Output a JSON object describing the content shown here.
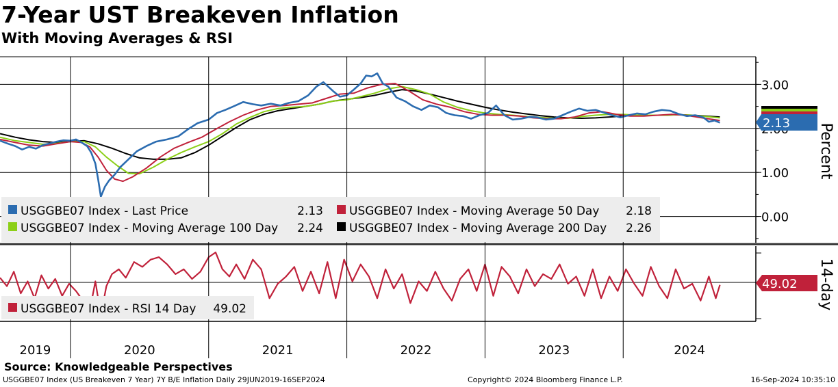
{
  "header": {
    "title": "7-Year UST Breakeven Inflation",
    "subtitle": "With Moving Averages & RSI"
  },
  "footer": {
    "source": "Source: Knowledgeable Perspectives",
    "description": "USGGBE07 Index (US Breakeven 7 Year) 7Y B/E Inflation  Daily 29JUN2019-16SEP2024",
    "copyright": "Copyright© 2024 Bloomberg Finance L.P.",
    "timestamp": "16-Sep-2024 10:35:10"
  },
  "colors": {
    "last_price": "#2b6cb0",
    "ma50": "#c0213a",
    "ma100": "#8ccf17",
    "ma200": "#000000",
    "rsi": "#c0213a",
    "legend_bg": "#ededed"
  },
  "chart_data": [
    {
      "type": "line",
      "panel": "price",
      "ylabel": "Percent",
      "ylim": [
        -0.55,
        3.55
      ],
      "yticks": [
        "3.00",
        "2.00",
        "1.00",
        "0.00"
      ],
      "yticks_values": [
        3.0,
        2.0,
        1.0,
        0.0
      ],
      "x_years": [
        "2019",
        "2020",
        "2021",
        "2022",
        "2023",
        "2024"
      ],
      "x_year_starts": [
        2020.0,
        2021.0,
        2022.0,
        2023.0,
        2024.0
      ],
      "xlim": [
        2019.49,
        2024.96
      ],
      "legend": [
        {
          "label": "USGGBE07 Index - Last Price",
          "value": "2.13"
        },
        {
          "label": "USGGBE07 Index - Moving Average 50 Day",
          "value": "2.18"
        },
        {
          "label": "USGGBE07 Index - Moving Average 100 Day",
          "value": "2.24"
        },
        {
          "label": "USGGBE07 Index - Moving Average 200 Day",
          "value": "2.26"
        }
      ],
      "last_value_tag": "2.13",
      "series": [
        {
          "name": "USGGBE07 Index - Last Price",
          "x": [
            2019.49,
            2019.55,
            2019.6,
            2019.65,
            2019.7,
            2019.75,
            2019.8,
            2019.85,
            2019.9,
            2019.95,
            2020.0,
            2020.04,
            2020.08,
            2020.12,
            2020.15,
            2020.18,
            2020.2,
            2020.22,
            2020.25,
            2020.28,
            2020.32,
            2020.36,
            2020.42,
            2020.48,
            2020.55,
            2020.62,
            2020.7,
            2020.78,
            2020.85,
            2020.92,
            2021.0,
            2021.06,
            2021.12,
            2021.18,
            2021.25,
            2021.32,
            2021.38,
            2021.45,
            2021.52,
            2021.58,
            2021.65,
            2021.72,
            2021.78,
            2021.83,
            2021.9,
            2021.95,
            2022.0,
            2022.05,
            2022.1,
            2022.14,
            2022.18,
            2022.22,
            2022.26,
            2022.3,
            2022.36,
            2022.42,
            2022.48,
            2022.54,
            2022.6,
            2022.66,
            2022.72,
            2022.78,
            2022.84,
            2022.9,
            2022.96,
            2023.02,
            2023.08,
            2023.14,
            2023.2,
            2023.26,
            2023.32,
            2023.38,
            2023.44,
            2023.5,
            2023.56,
            2023.62,
            2023.68,
            2023.74,
            2023.8,
            2023.86,
            2023.92,
            2023.98,
            2024.04,
            2024.1,
            2024.16,
            2024.22,
            2024.28,
            2024.34,
            2024.4,
            2024.46,
            2024.52,
            2024.58,
            2024.62,
            2024.66,
            2024.7
          ],
          "values": [
            1.72,
            1.65,
            1.6,
            1.52,
            1.58,
            1.54,
            1.62,
            1.66,
            1.7,
            1.73,
            1.72,
            1.75,
            1.68,
            1.6,
            1.45,
            1.2,
            0.85,
            0.45,
            0.68,
            0.82,
            0.95,
            1.12,
            1.3,
            1.48,
            1.6,
            1.7,
            1.75,
            1.82,
            1.98,
            2.12,
            2.2,
            2.35,
            2.42,
            2.5,
            2.6,
            2.55,
            2.52,
            2.56,
            2.52,
            2.58,
            2.62,
            2.75,
            2.95,
            3.05,
            2.85,
            2.72,
            2.75,
            2.88,
            3.02,
            3.2,
            3.18,
            3.25,
            3.02,
            2.95,
            2.7,
            2.62,
            2.5,
            2.42,
            2.52,
            2.48,
            2.35,
            2.3,
            2.28,
            2.22,
            2.3,
            2.35,
            2.52,
            2.3,
            2.2,
            2.22,
            2.26,
            2.25,
            2.2,
            2.22,
            2.3,
            2.38,
            2.45,
            2.4,
            2.42,
            2.36,
            2.3,
            2.25,
            2.3,
            2.34,
            2.32,
            2.38,
            2.42,
            2.4,
            2.33,
            2.28,
            2.3,
            2.25,
            2.15,
            2.18,
            2.13
          ]
        },
        {
          "name": "USGGBE07 Index - Moving Average 50 Day",
          "x": [
            2019.49,
            2019.6,
            2019.7,
            2019.8,
            2019.9,
            2020.0,
            2020.08,
            2020.14,
            2020.2,
            2020.26,
            2020.32,
            2020.38,
            2020.45,
            2020.55,
            2020.65,
            2020.75,
            2020.85,
            2020.95,
            2021.05,
            2021.15,
            2021.25,
            2021.35,
            2021.45,
            2021.55,
            2021.65,
            2021.75,
            2021.85,
            2021.95,
            2022.05,
            2022.15,
            2022.25,
            2022.35,
            2022.45,
            2022.55,
            2022.65,
            2022.75,
            2022.85,
            2022.95,
            2023.05,
            2023.15,
            2023.25,
            2023.35,
            2023.45,
            2023.55,
            2023.65,
            2023.75,
            2023.85,
            2023.95,
            2024.05,
            2024.15,
            2024.25,
            2024.35,
            2024.45,
            2024.55,
            2024.7
          ],
          "values": [
            1.75,
            1.68,
            1.62,
            1.6,
            1.65,
            1.7,
            1.68,
            1.58,
            1.35,
            1.05,
            0.85,
            0.8,
            0.9,
            1.1,
            1.35,
            1.55,
            1.68,
            1.8,
            1.98,
            2.15,
            2.3,
            2.42,
            2.5,
            2.52,
            2.55,
            2.58,
            2.68,
            2.78,
            2.8,
            2.92,
            3.0,
            3.02,
            2.85,
            2.65,
            2.55,
            2.48,
            2.38,
            2.32,
            2.3,
            2.3,
            2.28,
            2.24,
            2.22,
            2.22,
            2.26,
            2.35,
            2.38,
            2.32,
            2.28,
            2.28,
            2.3,
            2.32,
            2.3,
            2.25,
            2.18
          ]
        },
        {
          "name": "USGGBE07 Index - Moving Average 100 Day",
          "x": [
            2019.49,
            2019.6,
            2019.7,
            2019.8,
            2019.9,
            2020.0,
            2020.1,
            2020.18,
            2020.26,
            2020.34,
            2020.42,
            2020.5,
            2020.6,
            2020.7,
            2020.8,
            2020.9,
            2021.0,
            2021.1,
            2021.2,
            2021.3,
            2021.4,
            2021.5,
            2021.6,
            2021.7,
            2021.8,
            2021.9,
            2022.0,
            2022.1,
            2022.2,
            2022.3,
            2022.4,
            2022.5,
            2022.6,
            2022.7,
            2022.8,
            2022.9,
            2023.0,
            2023.1,
            2023.2,
            2023.3,
            2023.4,
            2023.5,
            2023.6,
            2023.7,
            2023.8,
            2023.9,
            2024.0,
            2024.1,
            2024.2,
            2024.3,
            2024.4,
            2024.5,
            2024.6,
            2024.7
          ],
          "values": [
            1.8,
            1.72,
            1.68,
            1.64,
            1.66,
            1.7,
            1.7,
            1.58,
            1.35,
            1.15,
            0.98,
            0.97,
            1.12,
            1.3,
            1.45,
            1.58,
            1.7,
            1.88,
            2.1,
            2.25,
            2.38,
            2.45,
            2.48,
            2.5,
            2.55,
            2.62,
            2.65,
            2.72,
            2.8,
            2.9,
            2.95,
            2.88,
            2.78,
            2.6,
            2.48,
            2.4,
            2.35,
            2.32,
            2.3,
            2.27,
            2.25,
            2.23,
            2.23,
            2.27,
            2.3,
            2.32,
            2.32,
            2.3,
            2.3,
            2.3,
            2.31,
            2.3,
            2.27,
            2.24
          ]
        },
        {
          "name": "USGGBE07 Index - Moving Average 200 Day",
          "x": [
            2019.49,
            2019.6,
            2019.7,
            2019.8,
            2019.9,
            2020.0,
            2020.1,
            2020.2,
            2020.3,
            2020.4,
            2020.5,
            2020.6,
            2020.7,
            2020.8,
            2020.9,
            2021.0,
            2021.1,
            2021.2,
            2021.3,
            2021.4,
            2021.5,
            2021.6,
            2021.7,
            2021.8,
            2021.9,
            2022.0,
            2022.1,
            2022.2,
            2022.3,
            2022.4,
            2022.5,
            2022.6,
            2022.7,
            2022.8,
            2022.9,
            2023.0,
            2023.1,
            2023.2,
            2023.3,
            2023.4,
            2023.5,
            2023.6,
            2023.7,
            2023.8,
            2023.9,
            2024.0,
            2024.1,
            2024.2,
            2024.3,
            2024.4,
            2024.5,
            2024.6,
            2024.7
          ],
          "values": [
            1.88,
            1.8,
            1.74,
            1.7,
            1.68,
            1.7,
            1.72,
            1.65,
            1.55,
            1.43,
            1.33,
            1.3,
            1.3,
            1.33,
            1.45,
            1.62,
            1.82,
            2.02,
            2.2,
            2.32,
            2.4,
            2.45,
            2.5,
            2.55,
            2.62,
            2.66,
            2.7,
            2.75,
            2.82,
            2.88,
            2.85,
            2.78,
            2.7,
            2.62,
            2.55,
            2.48,
            2.42,
            2.37,
            2.33,
            2.29,
            2.26,
            2.24,
            2.23,
            2.24,
            2.26,
            2.28,
            2.3,
            2.3,
            2.3,
            2.31,
            2.3,
            2.28,
            2.26
          ]
        }
      ]
    },
    {
      "type": "line",
      "panel": "rsi",
      "ylabel": "14-day",
      "ylim": [
        20,
        80
      ],
      "legend": [
        {
          "label": "USGGBE07 Index - RSI 14 Day",
          "value": "49.02"
        }
      ],
      "last_value_tag": "49.02",
      "series": [
        {
          "name": "USGGBE07 Index - RSI 14 Day",
          "x": [
            2019.49,
            2019.54,
            2019.59,
            2019.64,
            2019.69,
            2019.74,
            2019.79,
            2019.84,
            2019.89,
            2019.94,
            2019.99,
            2020.04,
            2020.09,
            2020.14,
            2020.18,
            2020.22,
            2020.26,
            2020.3,
            2020.35,
            2020.4,
            2020.46,
            2020.52,
            2020.58,
            2020.64,
            2020.7,
            2020.76,
            2020.82,
            2020.88,
            2020.94,
            2021.0,
            2021.05,
            2021.1,
            2021.15,
            2021.2,
            2021.26,
            2021.32,
            2021.38,
            2021.44,
            2021.5,
            2021.56,
            2021.62,
            2021.68,
            2021.74,
            2021.8,
            2021.86,
            2021.92,
            2021.98,
            2022.04,
            2022.1,
            2022.16,
            2022.22,
            2022.28,
            2022.34,
            2022.4,
            2022.46,
            2022.52,
            2022.58,
            2022.64,
            2022.7,
            2022.76,
            2022.82,
            2022.88,
            2022.94,
            2023.0,
            2023.06,
            2023.12,
            2023.18,
            2023.24,
            2023.3,
            2023.36,
            2023.42,
            2023.48,
            2023.54,
            2023.6,
            2023.66,
            2023.72,
            2023.78,
            2023.84,
            2023.9,
            2023.96,
            2024.02,
            2024.08,
            2024.14,
            2024.2,
            2024.26,
            2024.32,
            2024.38,
            2024.44,
            2024.5,
            2024.56,
            2024.62,
            2024.67,
            2024.7
          ],
          "values": [
            55,
            48,
            60,
            42,
            52,
            38,
            57,
            46,
            54,
            40,
            50,
            44,
            36,
            28,
            52,
            24,
            48,
            58,
            62,
            55,
            68,
            64,
            70,
            72,
            66,
            58,
            62,
            54,
            60,
            72,
            76,
            62,
            56,
            66,
            54,
            70,
            62,
            38,
            50,
            56,
            64,
            44,
            60,
            42,
            68,
            38,
            70,
            52,
            66,
            56,
            38,
            62,
            46,
            58,
            34,
            52,
            44,
            60,
            46,
            36,
            54,
            62,
            44,
            66,
            40,
            64,
            56,
            42,
            62,
            48,
            58,
            54,
            66,
            50,
            56,
            40,
            62,
            38,
            56,
            44,
            62,
            50,
            40,
            64,
            48,
            38,
            62,
            46,
            50,
            36,
            56,
            38,
            49.02
          ]
        }
      ]
    }
  ]
}
